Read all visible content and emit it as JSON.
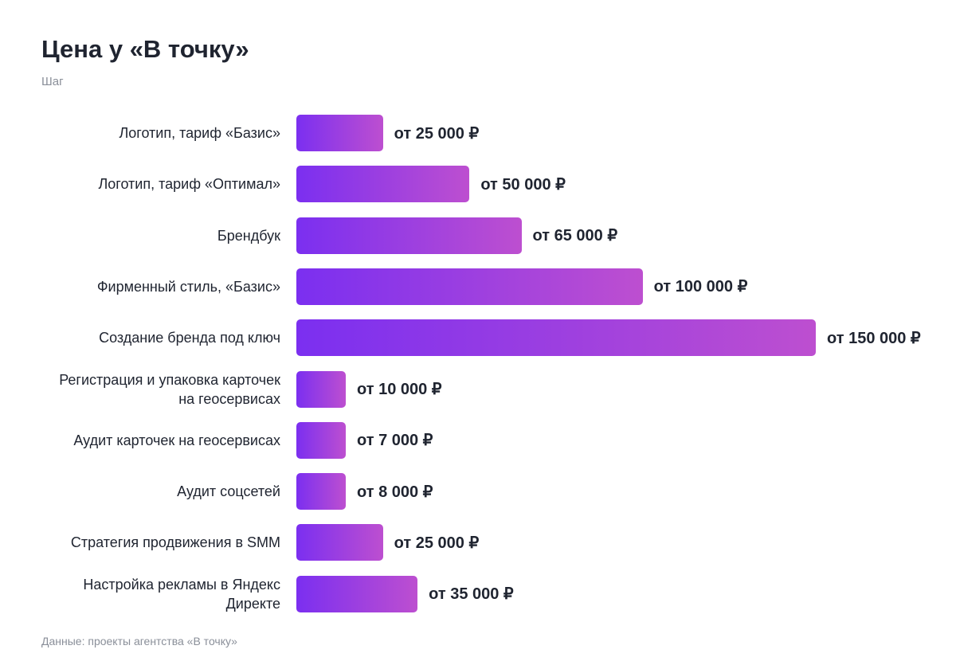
{
  "title": "Цена у «В точку»",
  "subtitle": "Шаг",
  "footer": "Данные: проекты агентства «В точку»",
  "colors": {
    "bar_start": "#7b2ff0",
    "bar_end": "#bd4fd0",
    "text": "#1f2430",
    "muted": "#8a8f99"
  },
  "chart_data": {
    "type": "bar",
    "orientation": "horizontal",
    "title": "Цена у «В точку»",
    "subtitle": "Шаг",
    "categories": [
      "Логотип, тариф «Базис»",
      "Логотип, тариф «Оптимал»",
      "Брендбук",
      "Фирменный стиль, «Базис»",
      "Создание бренда под ключ",
      "Регистрация и упаковка карточек на геосервисах",
      "Аудит карточек на геосервисах",
      "Аудит соцсетей",
      "Стратегия продвижения в SMM",
      "Настройка рекламы в Яндекс Директе"
    ],
    "values": [
      25000,
      50000,
      65000,
      100000,
      150000,
      10000,
      7000,
      8000,
      25000,
      35000
    ],
    "value_labels": [
      "от 25 000 ₽",
      "от 50 000 ₽",
      "от 65 000 ₽",
      "от 100 000 ₽",
      "от 150 000 ₽",
      "от 10 000 ₽",
      "от 7 000 ₽",
      "от 8 000 ₽",
      "от 25 000 ₽",
      "от 35 000 ₽"
    ],
    "xlim": [
      0,
      150000
    ],
    "grid": false,
    "legend": "none"
  }
}
